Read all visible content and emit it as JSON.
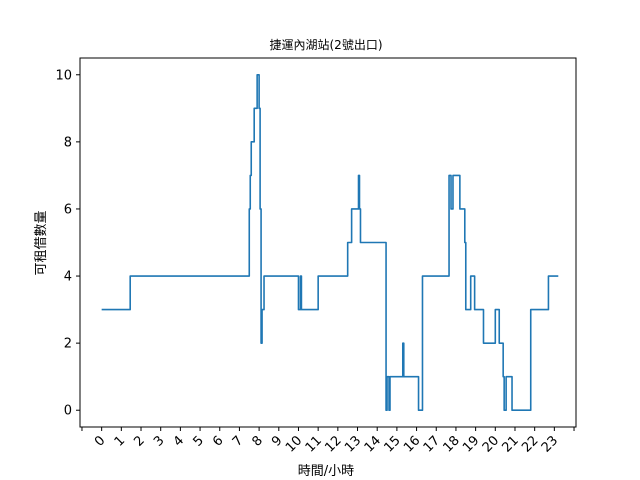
{
  "chart_data": {
    "type": "line",
    "title": "捷運內湖站(2號出口)",
    "xlabel": "時間/小時",
    "ylabel": "可租借數量",
    "xlim": [
      -1.1,
      24.1
    ],
    "ylim": [
      -0.5,
      10.5
    ],
    "x_ticks": [
      -1,
      0,
      1,
      2,
      3,
      4,
      5,
      6,
      7,
      8,
      9,
      10,
      11,
      12,
      13,
      14,
      15,
      16,
      17,
      18,
      19,
      20,
      21,
      22,
      23,
      24
    ],
    "x_tick_labels": [
      "",
      "0",
      "1",
      "2",
      "3",
      "4",
      "5",
      "6",
      "7",
      "8",
      "9",
      "10",
      "11",
      "12",
      "13",
      "14",
      "15",
      "16",
      "17",
      "18",
      "19",
      "20",
      "21",
      "22",
      "23",
      ""
    ],
    "y_ticks": [
      0,
      2,
      4,
      6,
      8,
      10
    ],
    "y_tick_labels": [
      "0",
      "2",
      "4",
      "6",
      "8",
      "10"
    ],
    "grid": false,
    "line_color": "#1f77b4",
    "series": [
      {
        "x": [
          0,
          1.45,
          1.45,
          7.5,
          7.5,
          7.55,
          7.55,
          7.6,
          7.6,
          7.75,
          7.75,
          7.9,
          7.9,
          8.0,
          8.0,
          8.05,
          8.05,
          8.1,
          8.1,
          8.15,
          8.15,
          8.25,
          8.25,
          10.0,
          10.0,
          10.1,
          10.1,
          10.15,
          10.15,
          11.0,
          11.0,
          12.5,
          12.5,
          12.7,
          12.7,
          13.05,
          13.05,
          13.1,
          13.1,
          13.15,
          13.15,
          14.45,
          14.45,
          14.5,
          14.5,
          14.6,
          14.6,
          14.65,
          14.65,
          15.3,
          15.3,
          15.35,
          15.35,
          16.1,
          16.1,
          16.3,
          16.3,
          17.65,
          17.65,
          17.75,
          17.75,
          17.85,
          17.85,
          18.2,
          18.2,
          18.45,
          18.45,
          18.5,
          18.5,
          18.75,
          18.75,
          18.95,
          18.95,
          19.4,
          19.4,
          20.0,
          20.0,
          20.2,
          20.2,
          20.4,
          20.4,
          20.45,
          20.45,
          20.55,
          20.55,
          20.85,
          20.85,
          21.8,
          21.8,
          22.7,
          22.7,
          22.9,
          22.9,
          23.2
        ],
        "y": [
          3,
          3,
          4,
          4,
          6,
          6,
          7,
          7,
          8,
          8,
          9,
          9,
          10,
          10,
          9,
          9,
          6,
          6,
          2,
          2,
          3,
          3,
          4,
          4,
          3,
          3,
          4,
          4,
          3,
          3,
          4,
          4,
          5,
          5,
          6,
          6,
          7,
          7,
          6,
          6,
          5,
          5,
          0,
          0,
          1,
          1,
          0,
          0,
          1,
          1,
          2,
          2,
          1,
          1,
          0,
          0,
          4,
          4,
          7,
          7,
          6,
          6,
          7,
          7,
          6,
          6,
          5,
          5,
          3,
          3,
          4,
          4,
          3,
          3,
          2,
          2,
          3,
          3,
          2,
          2,
          1,
          1,
          0,
          0,
          1,
          1,
          0,
          0,
          3,
          3,
          4,
          4,
          4,
          4
        ],
        "note_units": "x in hours"
      }
    ]
  }
}
